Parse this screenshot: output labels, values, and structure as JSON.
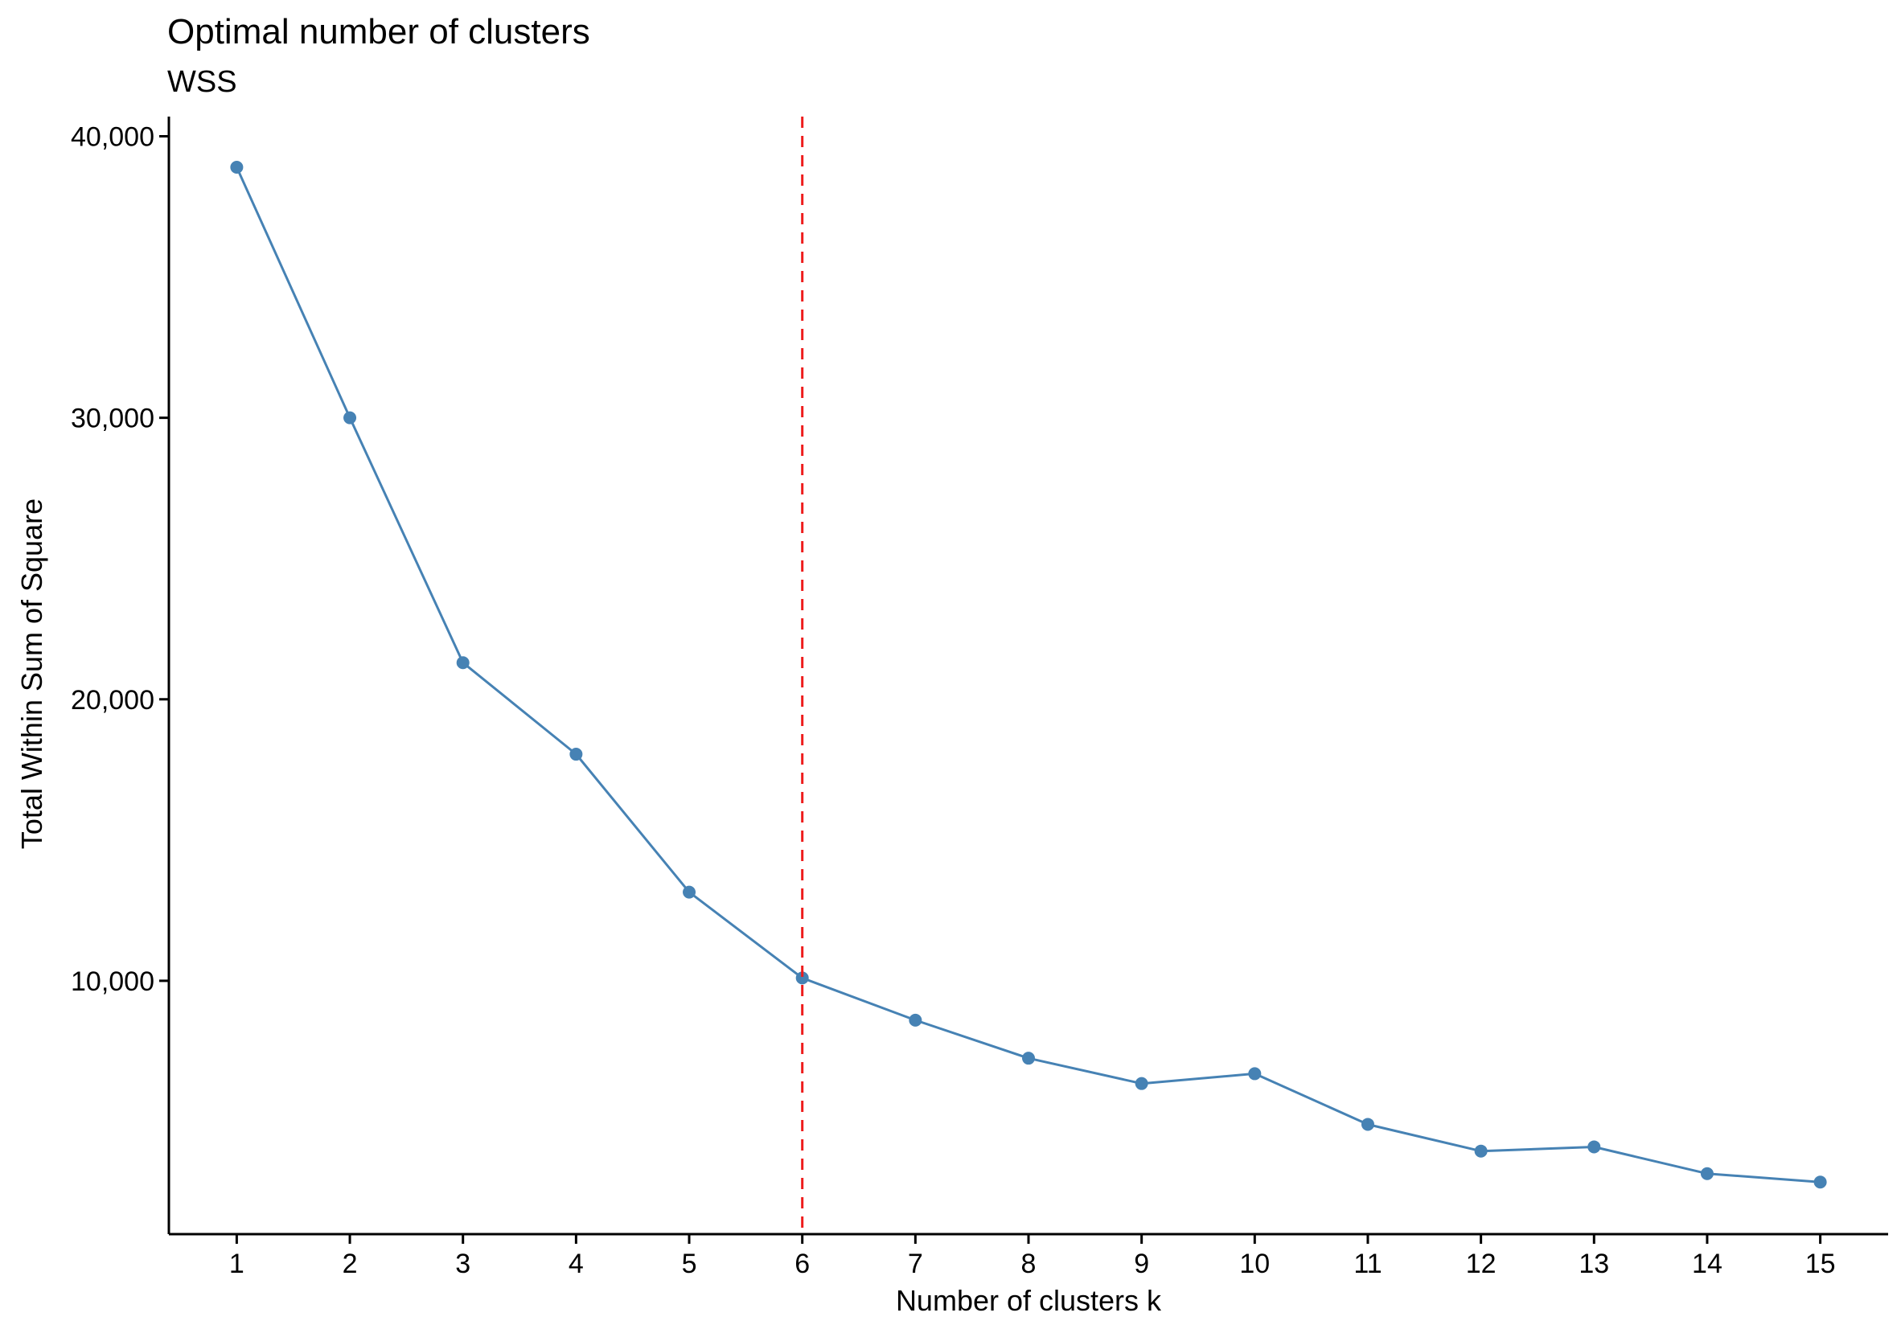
{
  "chart_data": {
    "type": "line",
    "title": "Optimal number of clusters",
    "subtitle": "WSS",
    "xlabel": "Number of clusters k",
    "ylabel": "Total Within Sum of Square",
    "x": [
      1,
      2,
      3,
      4,
      5,
      6,
      7,
      8,
      9,
      10,
      11,
      12,
      13,
      14,
      15
    ],
    "x_tick_labels": [
      "1",
      "2",
      "3",
      "4",
      "5",
      "6",
      "7",
      "8",
      "9",
      "10",
      "11",
      "12",
      "13",
      "14",
      "15"
    ],
    "series": [
      {
        "values": [
          38900,
          30000,
          21300,
          18050,
          13150,
          10100,
          8600,
          7250,
          6350,
          6700,
          4900,
          3950,
          4100,
          3150,
          2850
        ]
      }
    ],
    "y_ticks": [
      10000,
      20000,
      30000,
      40000
    ],
    "y_tick_labels": [
      "10,000",
      "20,000",
      "30,000",
      "40,000"
    ],
    "ylim": [
      1000,
      40700
    ],
    "xlim": [
      0.4,
      15.6
    ],
    "reference_line": {
      "x": 6,
      "style": "dashed",
      "color": "#ee1c1c"
    },
    "colors": {
      "series": "#4682b4",
      "reference": "#ee1c1c",
      "axis": "#000000"
    },
    "grid": false,
    "legend": "none"
  }
}
